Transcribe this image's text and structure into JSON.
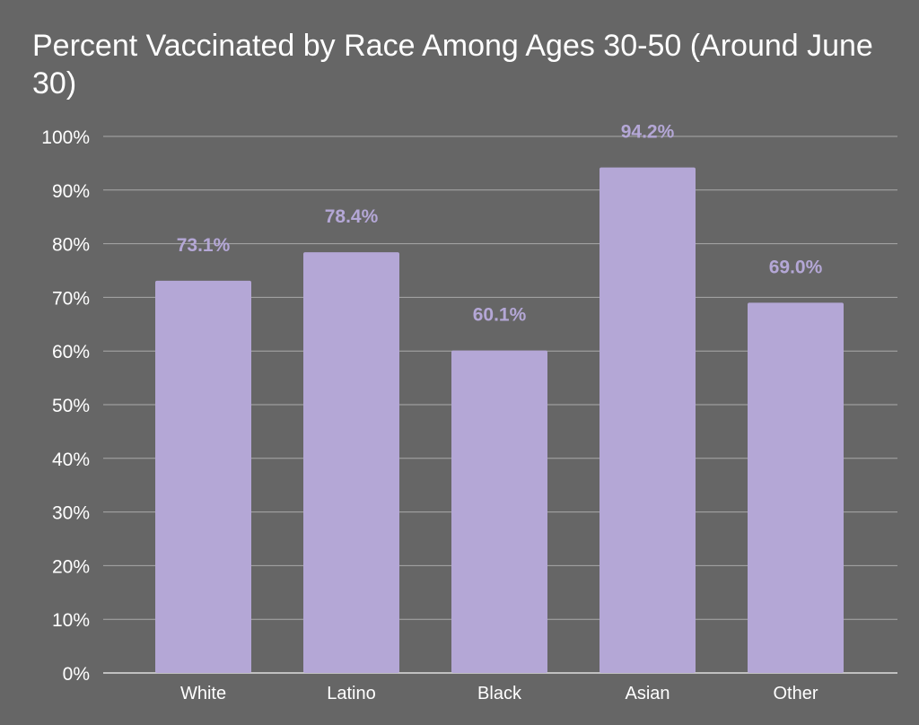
{
  "chart_data": {
    "type": "bar",
    "title": "Percent Vaccinated by Race Among Ages 30-50 (Around June 30)",
    "categories": [
      "White",
      "Latino",
      "Black",
      "Asian",
      "Other"
    ],
    "values": [
      73.1,
      78.4,
      60.1,
      94.2,
      69.0
    ],
    "data_labels": [
      "73.1%",
      "78.4%",
      "60.1%",
      "94.2%",
      "69.0%"
    ],
    "xlabel": "",
    "ylabel": "",
    "ylim": [
      0,
      100
    ],
    "yticks": [
      0,
      10,
      20,
      30,
      40,
      50,
      60,
      70,
      80,
      90,
      100
    ],
    "ytick_labels": [
      "0%",
      "10%",
      "20%",
      "30%",
      "40%",
      "50%",
      "60%",
      "70%",
      "80%",
      "90%",
      "100%"
    ],
    "grid": true,
    "legend": "none",
    "colors": {
      "background": "#666666",
      "bar": "#b4a7d6",
      "grid": "#a9a9a9",
      "text": "#ffffff"
    }
  }
}
